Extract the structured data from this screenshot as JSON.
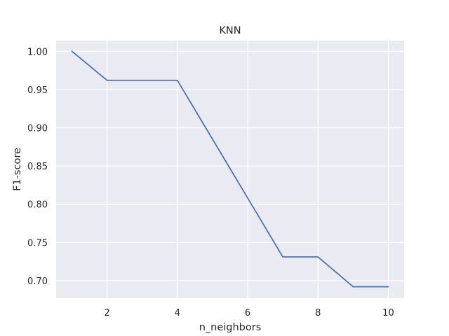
{
  "chart_data": {
    "type": "line",
    "title": "KNN",
    "xlabel": "n_neighbors",
    "ylabel": "F1-score",
    "grid": true,
    "background": "#eaeaf2",
    "grid_color": "#ffffff",
    "line_color": "#4c72b0",
    "xlim": [
      0.55,
      10.45
    ],
    "ylim": [
      0.677,
      1.014
    ],
    "xticks": [
      2,
      4,
      6,
      8,
      10
    ],
    "xtick_labels": [
      "2",
      "4",
      "6",
      "8",
      "10"
    ],
    "yticks": [
      0.7,
      0.75,
      0.8,
      0.85,
      0.9,
      0.95,
      1.0
    ],
    "ytick_labels": [
      "0.70",
      "0.75",
      "0.80",
      "0.85",
      "0.90",
      "0.95",
      "1.00"
    ],
    "series": [
      {
        "x": [
          1,
          2,
          3,
          4,
          5,
          6,
          7,
          8,
          9,
          10
        ],
        "values": [
          1.0,
          0.962,
          0.962,
          0.962,
          0.885,
          0.808,
          0.731,
          0.731,
          0.692,
          0.692
        ]
      }
    ]
  }
}
